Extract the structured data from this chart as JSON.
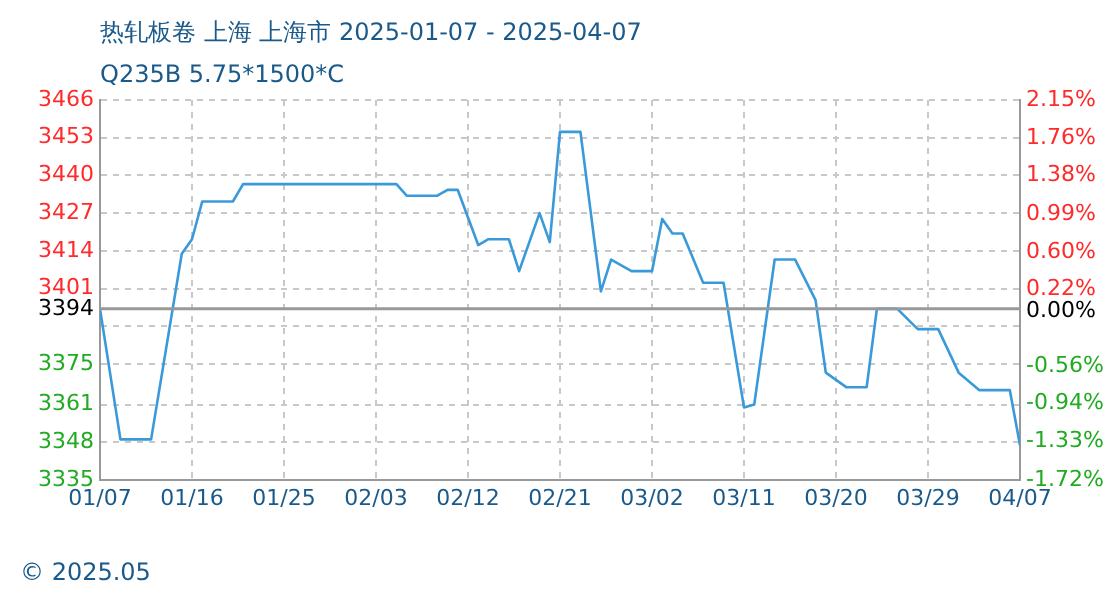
{
  "chart_data": {
    "type": "line",
    "title": "热轧板卷 上海 上海市 2025-01-07 - 2025-04-07",
    "subtitle": "Q235B 5.75*1500*C",
    "x": [
      "2025-01-07",
      "2025-01-09",
      "2025-01-12",
      "2025-01-15",
      "2025-01-16",
      "2025-01-17",
      "2025-01-20",
      "2025-01-21",
      "2025-02-05",
      "2025-02-06",
      "2025-02-09",
      "2025-02-10",
      "2025-02-11",
      "2025-02-13",
      "2025-02-14",
      "2025-02-16",
      "2025-02-17",
      "2025-02-19",
      "2025-02-20",
      "2025-02-21",
      "2025-02-23",
      "2025-02-25",
      "2025-02-26",
      "2025-02-28",
      "2025-03-02",
      "2025-03-03",
      "2025-03-04",
      "2025-03-05",
      "2025-03-07",
      "2025-03-09",
      "2025-03-11",
      "2025-03-12",
      "2025-03-14",
      "2025-03-16",
      "2025-03-18",
      "2025-03-19",
      "2025-03-21",
      "2025-03-23",
      "2025-03-24",
      "2025-03-26",
      "2025-03-28",
      "2025-03-30",
      "2025-04-01",
      "2025-04-03",
      "2025-04-06",
      "2025-04-07"
    ],
    "series": [
      {
        "color": "#3a9ad9",
        "values": [
          3394,
          3349,
          3349,
          3413,
          3418,
          3431,
          3431,
          3437,
          3437,
          3433,
          3433,
          3435,
          3435,
          3416,
          3418,
          3418,
          3407,
          3427,
          3417,
          3455,
          3455,
          3400,
          3411,
          3407,
          3407,
          3425,
          3420,
          3420,
          3403,
          3403,
          3360,
          3361,
          3411,
          3411,
          3397,
          3372,
          3367,
          3367,
          3394,
          3394,
          3387,
          3387,
          3372,
          3366,
          3366,
          3347
        ]
      }
    ],
    "xlim": [
      "2025-01-07",
      "2025-04-07"
    ],
    "xticks": [
      {
        "value": "2025-01-07",
        "label": "01/07"
      },
      {
        "value": "2025-01-16",
        "label": "01/16"
      },
      {
        "value": "2025-01-25",
        "label": "01/25"
      },
      {
        "value": "2025-02-03",
        "label": "02/03"
      },
      {
        "value": "2025-02-12",
        "label": "02/12"
      },
      {
        "value": "2025-02-21",
        "label": "02/21"
      },
      {
        "value": "2025-03-02",
        "label": "03/02"
      },
      {
        "value": "2025-03-11",
        "label": "03/11"
      },
      {
        "value": "2025-03-20",
        "label": "03/20"
      },
      {
        "value": "2025-03-29",
        "label": "03/29"
      },
      {
        "value": "2025-04-07",
        "label": "04/07"
      }
    ],
    "ylim": [
      3335,
      3466
    ],
    "yticks": [
      3466,
      3453,
      3440,
      3427,
      3414,
      3401,
      3394,
      {
        "value": 3388,
        "label": null
      },
      3375,
      3361,
      3348,
      3335
    ],
    "y2lim": [
      -1.72,
      2.15
    ],
    "y2ticks": [
      {
        "value": 2.15,
        "label": "2.15%"
      },
      {
        "value": 1.76,
        "label": "1.76%"
      },
      {
        "value": 1.38,
        "label": "1.38%"
      },
      {
        "value": 0.99,
        "label": "0.99%"
      },
      {
        "value": 0.6,
        "label": "0.60%"
      },
      {
        "value": 0.22,
        "label": "0.22%"
      },
      {
        "value": 0,
        "label": "0.00%"
      },
      {
        "value": -0.56,
        "label": "-0.56%"
      },
      {
        "value": -0.94,
        "label": "-0.94%"
      },
      {
        "value": -1.33,
        "label": "-1.33%"
      },
      {
        "value": -1.72,
        "label": "-1.72%"
      }
    ],
    "ref_lines": [
      {
        "axis": "y",
        "value": 3394,
        "color": "#999999"
      }
    ],
    "grid": true,
    "legend": false,
    "marker": "none",
    "line_style": "solid",
    "annotations": [
      "© 2025.05"
    ]
  }
}
